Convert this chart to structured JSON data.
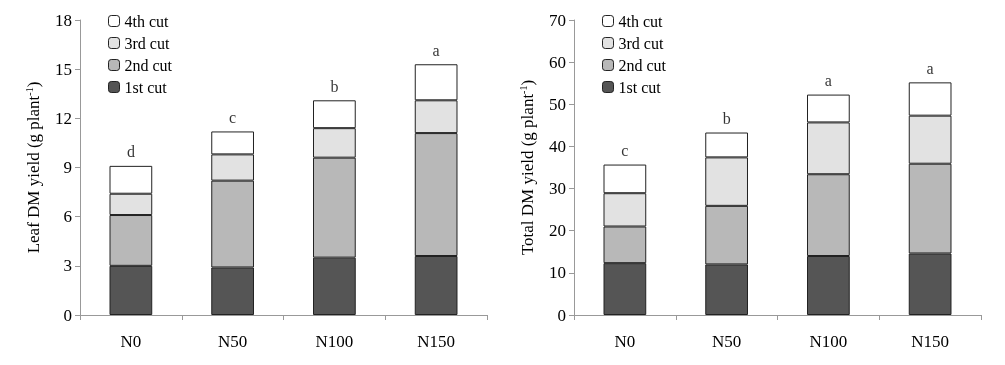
{
  "chart_data": [
    {
      "type": "bar",
      "stacked": true,
      "ylabel": "Leaf DM yield (g plant$^{-1}$)",
      "categories": [
        "N0",
        "N50",
        "N100",
        "N150"
      ],
      "ylim": [
        0,
        18
      ],
      "yticks": [
        0,
        3,
        6,
        9,
        12,
        15,
        18
      ],
      "grid": false,
      "legend": "top left",
      "series": [
        {
          "name": "1st cut",
          "color": "#555555",
          "values": [
            3.0,
            2.9,
            3.5,
            3.6
          ]
        },
        {
          "name": "2nd cut",
          "color": "#b8b8b8",
          "values": [
            3.1,
            5.3,
            6.1,
            7.5
          ]
        },
        {
          "name": "3rd cut",
          "color": "#e2e2e2",
          "values": [
            1.3,
            1.6,
            1.8,
            2.0
          ]
        },
        {
          "name": "4th cut",
          "color": "#ffffff",
          "values": [
            1.7,
            1.4,
            1.7,
            2.2
          ]
        }
      ],
      "annotations": [
        {
          "text": "d",
          "x": "N0",
          "y": 9.1
        },
        {
          "text": "c",
          "x": "N50",
          "y": 11.2
        },
        {
          "text": "b",
          "x": "N100",
          "y": 13.1
        },
        {
          "text": "a",
          "x": "N150",
          "y": 15.3
        }
      ]
    },
    {
      "type": "bar",
      "stacked": true,
      "ylabel": "Total DM yield (g plant$^{-1}$)",
      "categories": [
        "N0",
        "N50",
        "N100",
        "N150"
      ],
      "ylim": [
        0,
        70
      ],
      "yticks": [
        0,
        10,
        20,
        30,
        40,
        50,
        60,
        70
      ],
      "grid": false,
      "legend": "top left",
      "series": [
        {
          "name": "1st cut",
          "color": "#555555",
          "values": [
            12.3,
            12.0,
            14.0,
            14.6
          ]
        },
        {
          "name": "2nd cut",
          "color": "#b8b8b8",
          "values": [
            8.7,
            13.9,
            19.4,
            21.3
          ]
        },
        {
          "name": "3rd cut",
          "color": "#e2e2e2",
          "values": [
            7.9,
            11.5,
            12.3,
            11.4
          ]
        },
        {
          "name": "4th cut",
          "color": "#ffffff",
          "values": [
            6.8,
            5.9,
            6.6,
            7.9
          ]
        }
      ],
      "annotations": [
        {
          "text": "c",
          "x": "N0",
          "y": 35.7
        },
        {
          "text": "b",
          "x": "N50",
          "y": 43.3
        },
        {
          "text": "a",
          "x": "N100",
          "y": 52.3
        },
        {
          "text": "a",
          "x": "N150",
          "y": 55.2
        }
      ]
    }
  ]
}
